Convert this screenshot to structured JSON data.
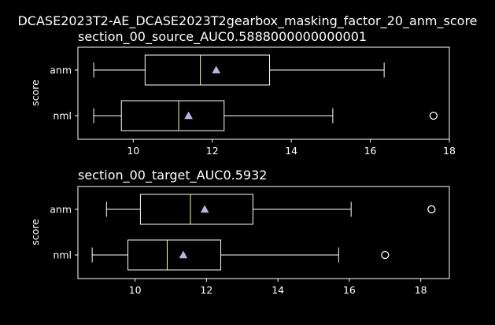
{
  "figure_title": "DCASE2023T2-AE_DCASE2023T2gearbox_masking_factor_20_anm_score",
  "colors": {
    "background": "#000000",
    "foreground": "#ffffff",
    "median": "#ffff99",
    "mean_marker": "#bcb4e0"
  },
  "chart_data": [
    {
      "type": "box",
      "orientation": "horizontal",
      "title": "section_00_source_AUC0.5888000000000001",
      "ylabel": "score",
      "xlabel": "",
      "xlim": [
        8.6,
        18.0
      ],
      "xticks": [
        10,
        12,
        14,
        16,
        18
      ],
      "grid": false,
      "categories": [
        "anm",
        "nml"
      ],
      "boxes": [
        {
          "label": "anm",
          "whisker_low": 9.0,
          "q1": 10.3,
          "median": 11.7,
          "q3": 13.45,
          "whisker_high": 16.35,
          "mean": 12.1,
          "outliers": []
        },
        {
          "label": "nml",
          "whisker_low": 9.0,
          "q1": 9.7,
          "median": 11.15,
          "q3": 12.3,
          "whisker_high": 15.05,
          "mean": 11.4,
          "outliers": [
            17.6
          ]
        }
      ]
    },
    {
      "type": "box",
      "orientation": "horizontal",
      "title": "section_00_target_AUC0.5932",
      "ylabel": "score",
      "xlabel": "",
      "xlim": [
        8.4,
        18.8
      ],
      "xticks": [
        10,
        12,
        14,
        16,
        18
      ],
      "grid": false,
      "categories": [
        "anm",
        "nml"
      ],
      "boxes": [
        {
          "label": "anm",
          "whisker_low": 9.2,
          "q1": 10.15,
          "median": 11.55,
          "q3": 13.3,
          "whisker_high": 16.05,
          "mean": 11.95,
          "outliers": [
            18.3
          ]
        },
        {
          "label": "nml",
          "whisker_low": 8.8,
          "q1": 9.8,
          "median": 10.9,
          "q3": 12.4,
          "whisker_high": 15.7,
          "mean": 11.35,
          "outliers": [
            17.0
          ]
        }
      ]
    }
  ]
}
